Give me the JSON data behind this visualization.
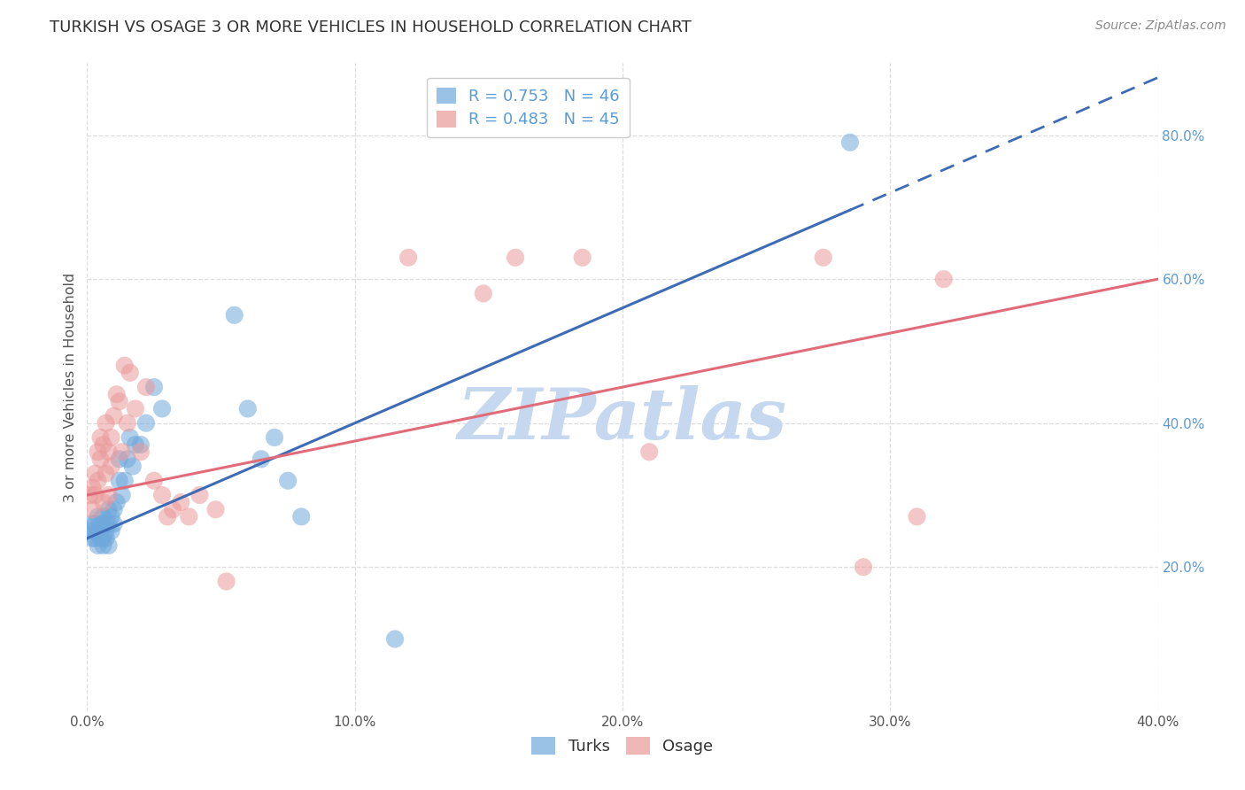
{
  "title": "TURKISH VS OSAGE 3 OR MORE VEHICLES IN HOUSEHOLD CORRELATION CHART",
  "source": "Source: ZipAtlas.com",
  "ylabel": "3 or more Vehicles in Household",
  "xlim": [
    0.0,
    0.4
  ],
  "ylim": [
    0.0,
    0.9
  ],
  "x_ticks": [
    0.0,
    0.1,
    0.2,
    0.3,
    0.4
  ],
  "x_tick_labels": [
    "0.0%",
    "10.0%",
    "20.0%",
    "30.0%",
    "40.0%"
  ],
  "y_ticks": [
    0.2,
    0.4,
    0.6,
    0.8
  ],
  "y_tick_labels_right": [
    "20.0%",
    "40.0%",
    "60.0%",
    "80.0%"
  ],
  "turks_R": 0.753,
  "turks_N": 46,
  "osage_R": 0.483,
  "osage_N": 45,
  "turks_color": "#6fa8dc",
  "osage_color": "#ea9999",
  "turks_line_color": "#3d6bb5",
  "osage_line_color": "#e06c7a",
  "turks_line_x0": 0.0,
  "turks_line_y0": 0.24,
  "turks_line_x1": 0.4,
  "turks_line_y1": 0.88,
  "turks_line_solid_x1": 0.285,
  "osage_line_x0": 0.0,
  "osage_line_y0": 0.3,
  "osage_line_x1": 0.4,
  "osage_line_y1": 0.6,
  "turks_x": [
    0.001,
    0.002,
    0.002,
    0.003,
    0.003,
    0.003,
    0.004,
    0.004,
    0.004,
    0.005,
    0.005,
    0.005,
    0.006,
    0.006,
    0.006,
    0.007,
    0.007,
    0.007,
    0.008,
    0.008,
    0.008,
    0.009,
    0.009,
    0.01,
    0.01,
    0.011,
    0.012,
    0.012,
    0.013,
    0.014,
    0.015,
    0.016,
    0.017,
    0.018,
    0.02,
    0.022,
    0.025,
    0.028,
    0.055,
    0.06,
    0.065,
    0.07,
    0.075,
    0.08,
    0.115,
    0.285
  ],
  "turks_y": [
    0.25,
    0.24,
    0.26,
    0.24,
    0.26,
    0.25,
    0.23,
    0.25,
    0.27,
    0.24,
    0.25,
    0.26,
    0.23,
    0.24,
    0.27,
    0.24,
    0.26,
    0.25,
    0.23,
    0.26,
    0.28,
    0.25,
    0.27,
    0.26,
    0.28,
    0.29,
    0.32,
    0.35,
    0.3,
    0.32,
    0.35,
    0.38,
    0.34,
    0.37,
    0.37,
    0.4,
    0.45,
    0.42,
    0.55,
    0.42,
    0.35,
    0.38,
    0.32,
    0.27,
    0.1,
    0.79
  ],
  "osage_x": [
    0.001,
    0.002,
    0.002,
    0.003,
    0.003,
    0.004,
    0.004,
    0.005,
    0.005,
    0.006,
    0.006,
    0.007,
    0.007,
    0.008,
    0.008,
    0.009,
    0.009,
    0.01,
    0.011,
    0.012,
    0.013,
    0.014,
    0.015,
    0.016,
    0.018,
    0.02,
    0.022,
    0.025,
    0.028,
    0.03,
    0.032,
    0.035,
    0.038,
    0.042,
    0.048,
    0.052,
    0.12,
    0.148,
    0.16,
    0.185,
    0.21,
    0.275,
    0.29,
    0.31,
    0.32
  ],
  "osage_y": [
    0.3,
    0.31,
    0.28,
    0.33,
    0.3,
    0.36,
    0.32,
    0.35,
    0.38,
    0.29,
    0.37,
    0.33,
    0.4,
    0.36,
    0.3,
    0.34,
    0.38,
    0.41,
    0.44,
    0.43,
    0.36,
    0.48,
    0.4,
    0.47,
    0.42,
    0.36,
    0.45,
    0.32,
    0.3,
    0.27,
    0.28,
    0.29,
    0.27,
    0.3,
    0.28,
    0.18,
    0.63,
    0.58,
    0.63,
    0.63,
    0.36,
    0.63,
    0.2,
    0.27,
    0.6
  ],
  "watermark": "ZIPatlas",
  "watermark_color": "#c5d8f0",
  "background_color": "#ffffff",
  "grid_color": "#dddddd",
  "right_tick_color": "#5b9bd5",
  "bottom_tick_color": "#555555"
}
